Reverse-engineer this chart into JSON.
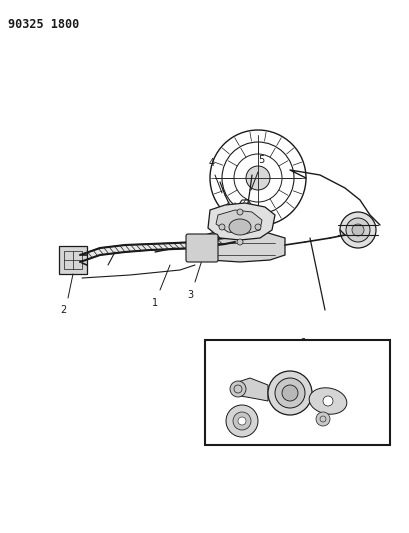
{
  "title_code": "90325 1800",
  "bg_color": "#ffffff",
  "line_color": "#1a1a1a",
  "label_color": "#1a1a1a",
  "title_fontsize": 8.5,
  "label_fontsize": 7,
  "fig_width": 4.09,
  "fig_height": 5.33,
  "dpi": 100,
  "diagram": {
    "xlim": [
      0,
      409
    ],
    "ylim": [
      0,
      533
    ]
  }
}
